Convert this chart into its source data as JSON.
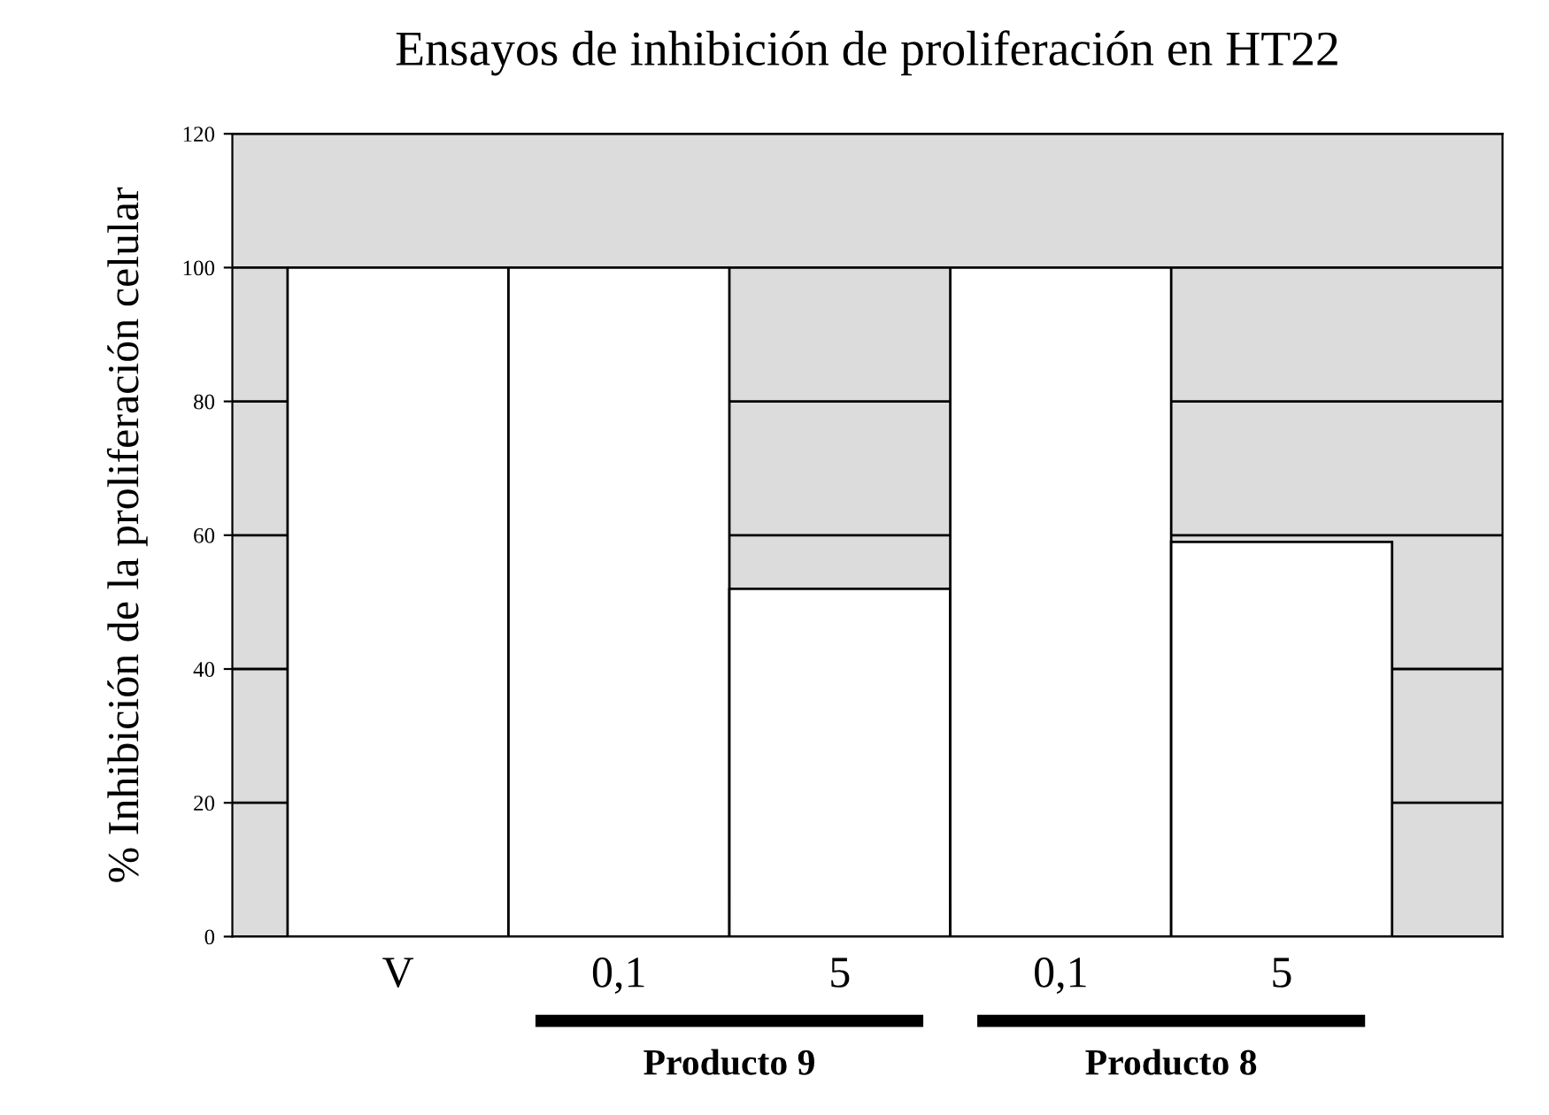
{
  "chart_data": {
    "type": "bar",
    "title": "Ensayos de inhibición de proliferación en HT22",
    "ylabel": "% Inhibición de la proliferación celular",
    "categories": [
      "V",
      "0,1",
      "5",
      "0,1",
      "5"
    ],
    "values": [
      100,
      100,
      52,
      100,
      59
    ],
    "color": "#ffffff",
    "ylim": [
      0,
      120
    ],
    "yticks": [
      0,
      20,
      40,
      60,
      80,
      100,
      120
    ],
    "grid": "y",
    "annotations": [
      "Producto 9",
      "Producto 8"
    ]
  }
}
